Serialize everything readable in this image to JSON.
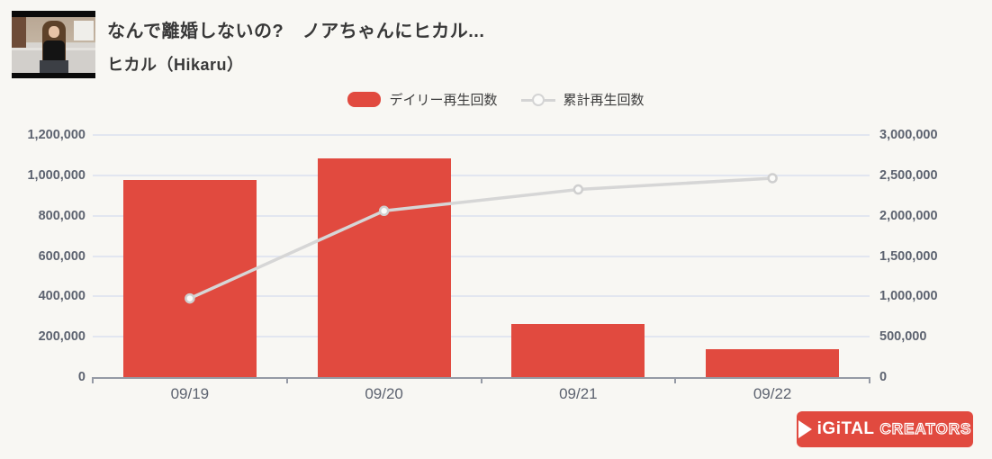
{
  "header": {
    "video_title": "なんで離婚しないの?　ノアちゃんにヒカル...",
    "channel_name": "ヒカル（Hikaru）",
    "thumbnail_desc": "woman with long brown hair in black top sitting on light couch"
  },
  "legend": {
    "daily_label": "デイリー再生回数",
    "cumulative_label": "累計再生回数"
  },
  "footer_logo": {
    "brand_text_1": "iGiTAL",
    "brand_text_2": "CREATORS",
    "bg_color": "#e14a3f"
  },
  "colors": {
    "bar": "#e14a3f",
    "line": "#d6d6d6",
    "marker_fill": "#fbfbf9",
    "marker_stroke": "#cfcfcf",
    "grid": "#e2e6f0",
    "axis": "#959aa5",
    "background": "#f8f7f3"
  },
  "chart_data": {
    "type": "bar",
    "categories": [
      "09/19",
      "09/20",
      "09/21",
      "09/22"
    ],
    "series": [
      {
        "name": "デイリー再生回数",
        "type": "bar",
        "axis": "left",
        "color": "#e14a3f",
        "values": [
          975000,
          1085000,
          265000,
          140000
        ]
      },
      {
        "name": "累計再生回数",
        "type": "line",
        "axis": "right",
        "color": "#d6d6d6",
        "values": [
          975000,
          2060000,
          2325000,
          2465000
        ]
      }
    ],
    "title": "",
    "xlabel": "",
    "ylabel_left": "",
    "ylabel_right": "",
    "left_axis": {
      "min": 0,
      "max": 1200000,
      "tick_step": 200000,
      "tick_labels_top_to_bottom": [
        "1,200,000",
        "1,000,000",
        "800,000",
        "600,000",
        "400,000",
        "200,000",
        "0"
      ]
    },
    "right_axis": {
      "min": 0,
      "max": 3000000,
      "tick_step": 500000,
      "tick_labels_top_to_bottom": [
        "3,000,000",
        "2,500,000",
        "2,000,000",
        "1,500,000",
        "1,000,000",
        "500,000",
        "0"
      ]
    },
    "grid": true,
    "legend_position": "top"
  }
}
